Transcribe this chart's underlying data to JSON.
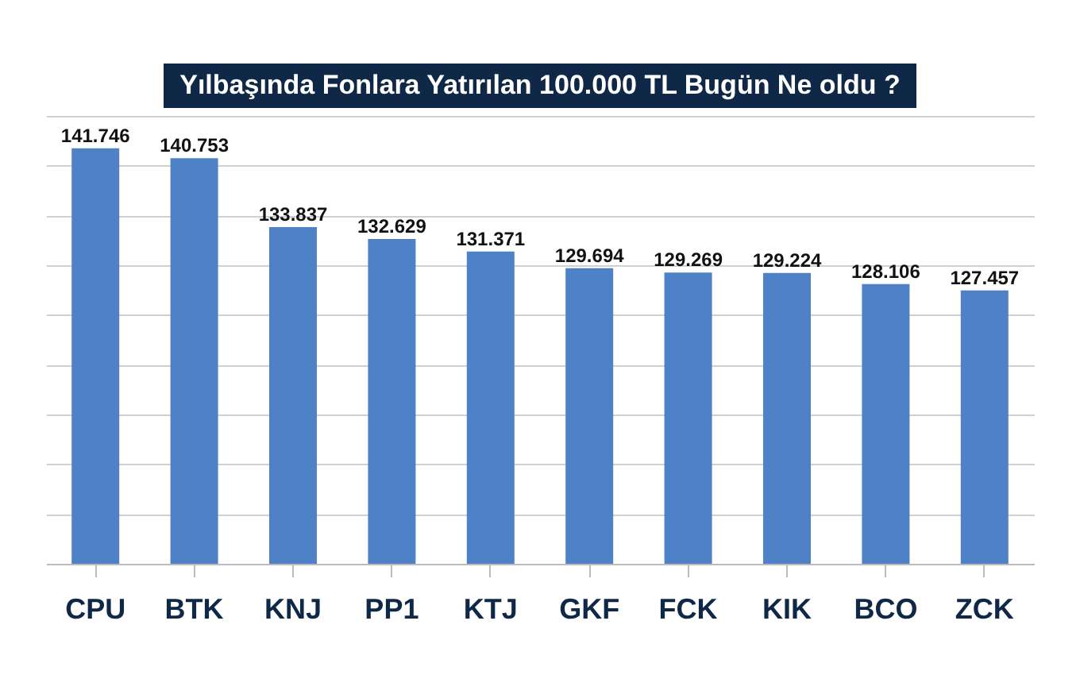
{
  "chart_data": {
    "type": "bar",
    "title": "Yılbaşında Fonlara Yatırılan 100.000 TL Bugün Ne oldu ?",
    "categories": [
      "CPU",
      "BTK",
      "KNJ",
      "PP1",
      "KTJ",
      "GKF",
      "FCK",
      "KIK",
      "BCO",
      "ZCK"
    ],
    "values": [
      141746,
      140753,
      133837,
      132629,
      131371,
      129694,
      129269,
      129224,
      128106,
      127457
    ],
    "value_labels": [
      "141.746",
      "140.753",
      "133.837",
      "132.629",
      "131.371",
      "129.694",
      "129.269",
      "129.224",
      "128.106",
      "127.457"
    ],
    "color": "#4f81c7",
    "ylim": [
      100000,
      145000
    ],
    "grid": "y",
    "tick_labels": "x"
  }
}
